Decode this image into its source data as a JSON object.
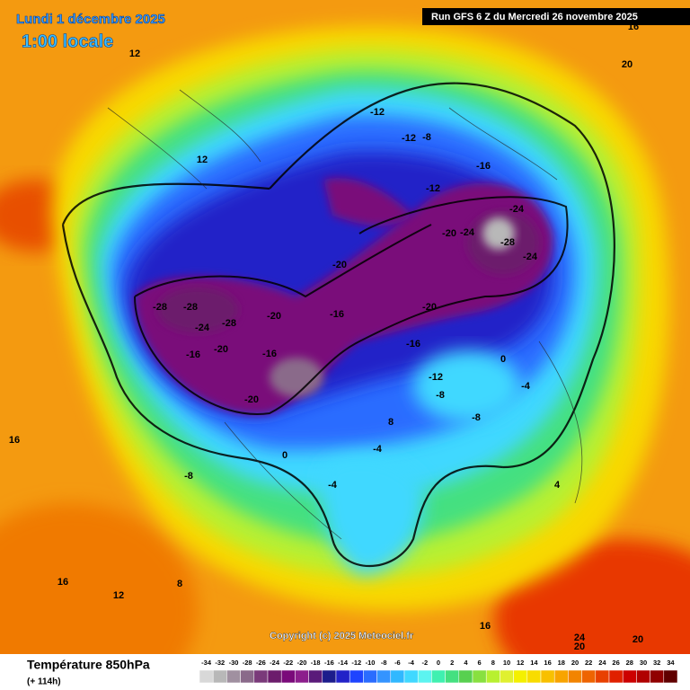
{
  "header": {
    "valid_date": "Lundi 1 décembre 2025",
    "local_time": "1:00 locale",
    "run": "Run GFS 6 Z du Mercredi 26 novembre 2025"
  },
  "footer": {
    "title": "Température 850hPa",
    "lead": "(+ 114h)",
    "copyright": "Copyright (c) 2025 Meteociel.fr"
  },
  "legend": {
    "values": [
      -34,
      -32,
      -30,
      -28,
      -26,
      -24,
      -22,
      -20,
      -18,
      -16,
      -14,
      -12,
      -10,
      -8,
      -6,
      -4,
      -2,
      0,
      2,
      4,
      6,
      8,
      10,
      12,
      14,
      16,
      18,
      20,
      22,
      24,
      26,
      28,
      30,
      32,
      34
    ],
    "colors": [
      "#d8d8d8",
      "#b8b8b8",
      "#a090a0",
      "#8a6a8a",
      "#7a3a7a",
      "#6c1c6c",
      "#7a0a7a",
      "#8c1e8c",
      "#5a1a7a",
      "#1c1c8c",
      "#2222c8",
      "#1e44ff",
      "#2a6cff",
      "#3494ff",
      "#30b8ff",
      "#40d8ff",
      "#5cf4f0",
      "#40f0b0",
      "#44e080",
      "#58d050",
      "#88e040",
      "#b8f030",
      "#e0f030",
      "#f4f000",
      "#f8dc00",
      "#f8c000",
      "#f8a400",
      "#f28400",
      "#ee6400",
      "#e84000",
      "#e02000",
      "#cc0000",
      "#b00000",
      "#900000",
      "#600000"
    ]
  },
  "map_labels": [
    -28,
    -28,
    -24,
    -28,
    -20,
    -16,
    -20,
    -20,
    -16,
    -20,
    -12,
    -8,
    -12,
    -16,
    -24,
    -28,
    -24,
    -20,
    -24,
    -20,
    -16,
    -12,
    -8,
    -8,
    -4,
    0,
    -4,
    -8,
    0,
    -4,
    4,
    8,
    12,
    12,
    16,
    16,
    16,
    20,
    20,
    24,
    20,
    8,
    12,
    16,
    -12,
    -16
  ]
}
